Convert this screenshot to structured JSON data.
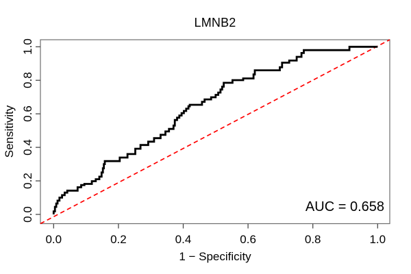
{
  "chart_data": {
    "type": "line",
    "subtype": "roc-curve",
    "title": "LMNB2",
    "xlabel": "1 − Specificity",
    "ylabel": "Sensitivity",
    "xlim": [
      0,
      1
    ],
    "ylim": [
      0,
      1
    ],
    "x_ticks": [
      "0.0",
      "0.2",
      "0.4",
      "0.6",
      "0.8",
      "1.0"
    ],
    "y_ticks": [
      "0.0",
      "0.2",
      "0.4",
      "0.6",
      "0.8",
      "1.0"
    ],
    "grid": false,
    "legend": "none",
    "auc": 0.658,
    "annotation": {
      "text": "AUC = 0.658",
      "position": "bottom-right",
      "color": "#000000"
    },
    "series": [
      {
        "name": "roc-curve",
        "color": "#000000",
        "line_style": "solid",
        "line_width": 2.8,
        "step": true,
        "points": [
          [
            0,
            0
          ],
          [
            0,
            0.018
          ],
          [
            0.004,
            0.018
          ],
          [
            0.004,
            0.045
          ],
          [
            0.008,
            0.045
          ],
          [
            0.008,
            0.065
          ],
          [
            0.012,
            0.065
          ],
          [
            0.012,
            0.082
          ],
          [
            0.018,
            0.082
          ],
          [
            0.018,
            0.1
          ],
          [
            0.026,
            0.1
          ],
          [
            0.026,
            0.115
          ],
          [
            0.034,
            0.115
          ],
          [
            0.034,
            0.13
          ],
          [
            0.042,
            0.13
          ],
          [
            0.042,
            0.142
          ],
          [
            0.074,
            0.142
          ],
          [
            0.074,
            0.162
          ],
          [
            0.085,
            0.162
          ],
          [
            0.085,
            0.175
          ],
          [
            0.095,
            0.175
          ],
          [
            0.095,
            0.182
          ],
          [
            0.118,
            0.182
          ],
          [
            0.118,
            0.198
          ],
          [
            0.13,
            0.198
          ],
          [
            0.13,
            0.21
          ],
          [
            0.141,
            0.21
          ],
          [
            0.141,
            0.225
          ],
          [
            0.148,
            0.225
          ],
          [
            0.148,
            0.25
          ],
          [
            0.152,
            0.25
          ],
          [
            0.152,
            0.275
          ],
          [
            0.155,
            0.275
          ],
          [
            0.155,
            0.3
          ],
          [
            0.158,
            0.3
          ],
          [
            0.158,
            0.318
          ],
          [
            0.204,
            0.318
          ],
          [
            0.204,
            0.339
          ],
          [
            0.228,
            0.339
          ],
          [
            0.228,
            0.36
          ],
          [
            0.252,
            0.36
          ],
          [
            0.252,
            0.392
          ],
          [
            0.268,
            0.392
          ],
          [
            0.268,
            0.414
          ],
          [
            0.292,
            0.414
          ],
          [
            0.292,
            0.434
          ],
          [
            0.31,
            0.434
          ],
          [
            0.31,
            0.455
          ],
          [
            0.33,
            0.455
          ],
          [
            0.33,
            0.475
          ],
          [
            0.345,
            0.475
          ],
          [
            0.345,
            0.495
          ],
          [
            0.356,
            0.495
          ],
          [
            0.356,
            0.51
          ],
          [
            0.37,
            0.51
          ],
          [
            0.37,
            0.53
          ],
          [
            0.374,
            0.53
          ],
          [
            0.374,
            0.563
          ],
          [
            0.381,
            0.563
          ],
          [
            0.381,
            0.577
          ],
          [
            0.388,
            0.577
          ],
          [
            0.388,
            0.59
          ],
          [
            0.395,
            0.59
          ],
          [
            0.395,
            0.604
          ],
          [
            0.402,
            0.604
          ],
          [
            0.402,
            0.617
          ],
          [
            0.409,
            0.617
          ],
          [
            0.409,
            0.631
          ],
          [
            0.416,
            0.631
          ],
          [
            0.416,
            0.645
          ],
          [
            0.42,
            0.645
          ],
          [
            0.42,
            0.654
          ],
          [
            0.458,
            0.654
          ],
          [
            0.458,
            0.672
          ],
          [
            0.466,
            0.672
          ],
          [
            0.466,
            0.686
          ],
          [
            0.486,
            0.686
          ],
          [
            0.486,
            0.699
          ],
          [
            0.5,
            0.699
          ],
          [
            0.5,
            0.713
          ],
          [
            0.508,
            0.713
          ],
          [
            0.508,
            0.727
          ],
          [
            0.515,
            0.727
          ],
          [
            0.515,
            0.745
          ],
          [
            0.52,
            0.745
          ],
          [
            0.52,
            0.762
          ],
          [
            0.525,
            0.762
          ],
          [
            0.525,
            0.785
          ],
          [
            0.552,
            0.785
          ],
          [
            0.552,
            0.801
          ],
          [
            0.585,
            0.801
          ],
          [
            0.585,
            0.811
          ],
          [
            0.617,
            0.811
          ],
          [
            0.617,
            0.835
          ],
          [
            0.621,
            0.835
          ],
          [
            0.621,
            0.86
          ],
          [
            0.698,
            0.86
          ],
          [
            0.698,
            0.878
          ],
          [
            0.705,
            0.878
          ],
          [
            0.705,
            0.905
          ],
          [
            0.727,
            0.905
          ],
          [
            0.727,
            0.918
          ],
          [
            0.75,
            0.918
          ],
          [
            0.75,
            0.94
          ],
          [
            0.765,
            0.94
          ],
          [
            0.765,
            0.963
          ],
          [
            0.772,
            0.963
          ],
          [
            0.772,
            0.98
          ],
          [
            0.913,
            0.98
          ],
          [
            0.913,
            1
          ],
          [
            1,
            1
          ]
        ]
      },
      {
        "name": "chance-diagonal",
        "color": "#ff0000",
        "line_style": "dashed",
        "line_width": 1.7,
        "points": [
          [
            0,
            0
          ],
          [
            1,
            1
          ]
        ]
      }
    ]
  }
}
